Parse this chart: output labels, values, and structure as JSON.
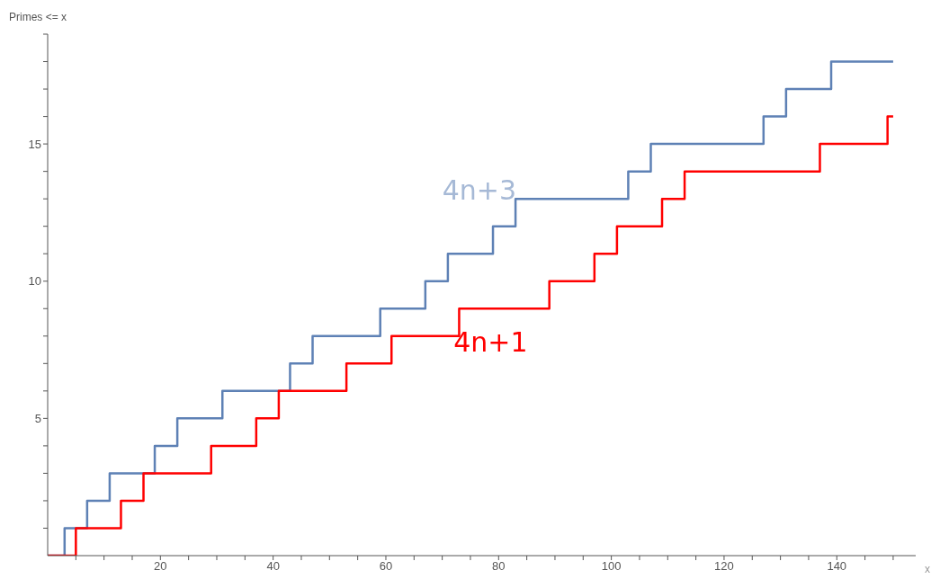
{
  "chart_data": {
    "type": "step",
    "ylabel": "Primes <= x",
    "xlabel": "x",
    "xlim": [
      0,
      154
    ],
    "ylim": [
      0,
      19
    ],
    "xticks": [
      {
        "value": 5,
        "label": null
      },
      {
        "value": 10,
        "label": null
      },
      {
        "value": 15,
        "label": null
      },
      20,
      {
        "value": 25,
        "label": null
      },
      {
        "value": 30,
        "label": null
      },
      {
        "value": 35,
        "label": null
      },
      40,
      {
        "value": 45,
        "label": null
      },
      {
        "value": 50,
        "label": null
      },
      {
        "value": 55,
        "label": null
      },
      60,
      {
        "value": 65,
        "label": null
      },
      {
        "value": 70,
        "label": null
      },
      {
        "value": 75,
        "label": null
      },
      80,
      {
        "value": 85,
        "label": null
      },
      {
        "value": 90,
        "label": null
      },
      {
        "value": 95,
        "label": null
      },
      100,
      {
        "value": 105,
        "label": null
      },
      {
        "value": 110,
        "label": null
      },
      {
        "value": 115,
        "label": null
      },
      120,
      {
        "value": 125,
        "label": null
      },
      {
        "value": 130,
        "label": null
      },
      {
        "value": 135,
        "label": null
      },
      140,
      {
        "value": 145,
        "label": null
      },
      {
        "value": 150,
        "label": null
      }
    ],
    "yticks": [
      {
        "value": 1,
        "label": null
      },
      {
        "value": 2,
        "label": null
      },
      {
        "value": 3,
        "label": null
      },
      {
        "value": 4,
        "label": null
      },
      5,
      {
        "value": 6,
        "label": null
      },
      {
        "value": 7,
        "label": null
      },
      {
        "value": 8,
        "label": null
      },
      {
        "value": 9,
        "label": null
      },
      10,
      {
        "value": 11,
        "label": null
      },
      {
        "value": 12,
        "label": null
      },
      {
        "value": 13,
        "label": null
      },
      {
        "value": 14,
        "label": null
      },
      15,
      {
        "value": 16,
        "label": null
      },
      {
        "value": 17,
        "label": null
      },
      {
        "value": 18,
        "label": null
      },
      {
        "value": 19,
        "label": null
      }
    ],
    "grid": false,
    "legend": false,
    "marker": "none",
    "line_style": "solid",
    "series": [
      {
        "name": "4n+3",
        "color": "#5e81b5",
        "x": [
          0,
          3,
          7,
          11,
          19,
          23,
          31,
          43,
          47,
          59,
          67,
          71,
          79,
          83,
          103,
          107,
          127,
          131,
          139,
          150
        ],
        "values": [
          0,
          1,
          2,
          3,
          4,
          5,
          6,
          7,
          8,
          9,
          10,
          11,
          12,
          13,
          14,
          15,
          16,
          17,
          18,
          18
        ]
      },
      {
        "name": "4n+1",
        "color": "#ff0000",
        "x": [
          0,
          5,
          13,
          17,
          29,
          37,
          41,
          53,
          61,
          73,
          89,
          97,
          101,
          109,
          113,
          137,
          149,
          150
        ],
        "values": [
          0,
          1,
          2,
          3,
          4,
          5,
          6,
          7,
          8,
          9,
          10,
          11,
          12,
          13,
          14,
          15,
          16,
          16
        ]
      }
    ]
  }
}
